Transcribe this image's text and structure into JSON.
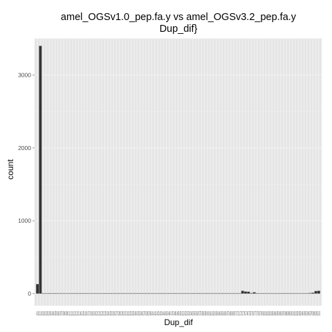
{
  "chart_data": {
    "type": "bar",
    "title_lines": [
      "amel_OGSv1.0_pep.fa.y vs amel_OGSv3.2_pep.fa.y",
      "Dup_dif}"
    ],
    "xlabel": "Dup_dif",
    "ylabel": "count",
    "ylim": [
      0,
      3550
    ],
    "yticks": [
      0,
      1000,
      2000,
      3000
    ],
    "ytick_labels": [
      "0",
      "1000",
      "2000",
      "3000"
    ],
    "x_tick_text": "-0.00.0.00.010.020.030.040.050.060.070.080.090.10.110.120.130.140.150.160.170.180.190.20.210.220.230.240.250.260.270.280.290.30.310.320.330.340.350.360.370.380.390.40.410.420.430.440.450.460.470.480.490.50.510.520.530.540.550.560.570.580.590.60.610.620.630.640.650.660.670.680.690.70.710.720.730.740.750.760.770.780.790.80.810.820.830.840.850.860.870.880.890.90.910.920.930.940.950.960.970.980.991.00",
    "values": [
      130,
      3400,
      4,
      3,
      3,
      4,
      3,
      3,
      3,
      4,
      3,
      3,
      3,
      3,
      4,
      3,
      3,
      3,
      3,
      4,
      3,
      3,
      3,
      3,
      4,
      3,
      3,
      3,
      3,
      3,
      3,
      3,
      3,
      3,
      3,
      3,
      3,
      3,
      4,
      3,
      3,
      3,
      3,
      3,
      3,
      3,
      3,
      3,
      3,
      3,
      3,
      3,
      3,
      3,
      3,
      3,
      3,
      3,
      3,
      3,
      3,
      3,
      3,
      3,
      3,
      3,
      3,
      3,
      3,
      4,
      38,
      28,
      26,
      8,
      18,
      4,
      3,
      3,
      6,
      5,
      3,
      3,
      3,
      3,
      3,
      3,
      3,
      3,
      3,
      3,
      3,
      3,
      3,
      8,
      12,
      35,
      38
    ],
    "bar_color": "#333333",
    "panel_background": "#e5e5e5",
    "grid_color": "#f2f2f2",
    "grid": true
  }
}
